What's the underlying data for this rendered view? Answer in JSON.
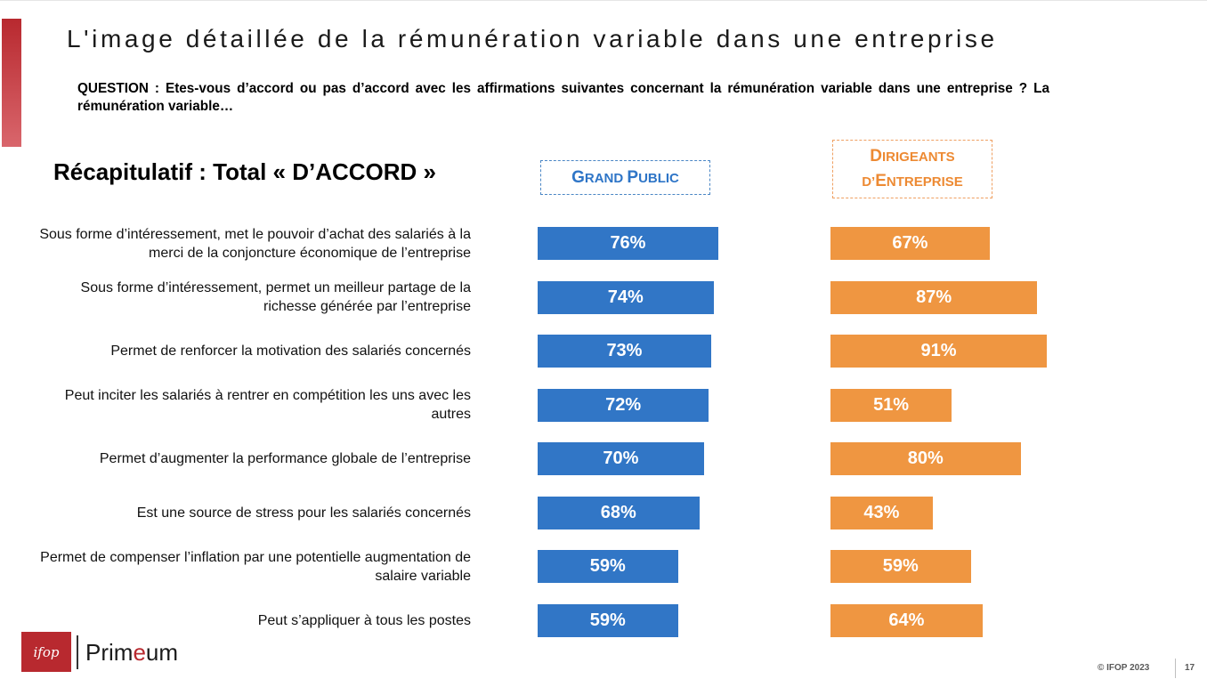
{
  "title": "L'image détaillée de la rémunération variable dans une entreprise",
  "question": "QUESTION : Etes-vous d’accord ou pas d’accord avec les affirmations suivantes concernant la rémunération variable dans une entreprise ? La rémunération variable…",
  "recap_title": "Récapitulatif : Total « D’ACCORD »",
  "colors": {
    "accent": "#b8292f",
    "grand_public": "#3176c6",
    "dirigeants": "#ef9641"
  },
  "chart_data": {
    "type": "bar",
    "orientation": "horizontal",
    "unit": "%",
    "categories": [
      "Sous forme d’intéressement, met le pouvoir d’achat des salariés à la merci de la conjoncture économique de l’entreprise",
      "Sous forme d’intéressement, permet un meilleur partage de la richesse générée par l’entreprise",
      "Permet de renforcer la motivation des salariés concernés",
      "Peut inciter les salariés à rentrer en compétition les uns avec les autres",
      "Permet d’augmenter la performance globale de l’entreprise",
      "Est une source de stress pour les salariés concernés",
      "Permet de compenser l’inflation par une potentielle augmentation de salaire variable",
      "Peut s’appliquer à tous les postes"
    ],
    "series": [
      {
        "name": "GRAND PUBLIC",
        "name_parts": [
          "G",
          "RAND ",
          "P",
          "UBLIC"
        ],
        "color": "#3176c6",
        "values": [
          76,
          74,
          73,
          72,
          70,
          68,
          59,
          59
        ]
      },
      {
        "name": "DIRIGEANTS D’ENTREPRISE",
        "name_parts": [
          "D",
          "IRIGEANTS",
          "D’",
          "E",
          "NTREPRISE"
        ],
        "color": "#ef9641",
        "values": [
          67,
          87,
          91,
          51,
          80,
          43,
          59,
          64
        ]
      }
    ]
  },
  "logo": {
    "box_text": "ifop",
    "brand_text_a": "Prim",
    "brand_text_e": "e",
    "brand_text_b": "um"
  },
  "footer": {
    "copyright": "© IFOP 2023",
    "page": "17"
  }
}
